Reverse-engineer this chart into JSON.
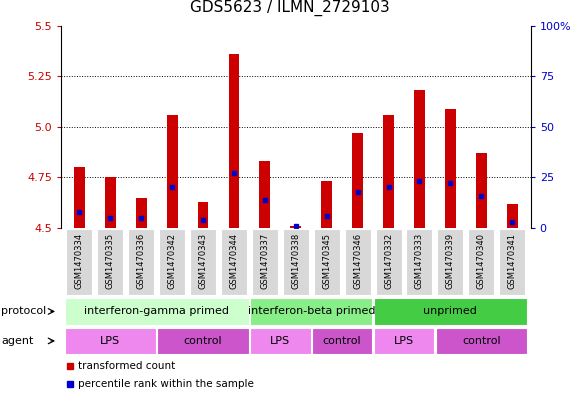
{
  "title": "GDS5623 / ILMN_2729103",
  "samples": [
    "GSM1470334",
    "GSM1470335",
    "GSM1470336",
    "GSM1470342",
    "GSM1470343",
    "GSM1470344",
    "GSM1470337",
    "GSM1470338",
    "GSM1470345",
    "GSM1470346",
    "GSM1470332",
    "GSM1470333",
    "GSM1470339",
    "GSM1470340",
    "GSM1470341"
  ],
  "transformed_counts": [
    4.8,
    4.75,
    4.65,
    5.06,
    4.63,
    5.36,
    4.83,
    4.51,
    4.73,
    4.97,
    5.06,
    5.18,
    5.09,
    4.87,
    4.62
  ],
  "percentile_ranks": [
    8,
    5,
    5,
    20,
    4,
    27,
    14,
    1,
    6,
    18,
    20,
    23,
    22,
    16,
    3
  ],
  "ylim_left": [
    4.5,
    5.5
  ],
  "ylim_right": [
    0,
    100
  ],
  "yticks_left": [
    4.5,
    4.75,
    5.0,
    5.25,
    5.5
  ],
  "yticks_right": [
    0,
    25,
    50,
    75,
    100
  ],
  "bar_color": "#cc0000",
  "bar_base": 4.5,
  "percentile_color": "#0000cc",
  "protocol_groups": [
    {
      "label": "interferon-gamma primed",
      "start": 0,
      "end": 6,
      "color": "#ccffcc"
    },
    {
      "label": "interferon-beta primed",
      "start": 6,
      "end": 10,
      "color": "#88ee88"
    },
    {
      "label": "unprimed",
      "start": 10,
      "end": 15,
      "color": "#44cc44"
    }
  ],
  "agent_groups": [
    {
      "label": "LPS",
      "start": 0,
      "end": 3,
      "color": "#ee88ee"
    },
    {
      "label": "control",
      "start": 3,
      "end": 6,
      "color": "#cc55cc"
    },
    {
      "label": "LPS",
      "start": 6,
      "end": 8,
      "color": "#ee88ee"
    },
    {
      "label": "control",
      "start": 8,
      "end": 10,
      "color": "#cc55cc"
    },
    {
      "label": "LPS",
      "start": 10,
      "end": 12,
      "color": "#ee88ee"
    },
    {
      "label": "control",
      "start": 12,
      "end": 15,
      "color": "#cc55cc"
    }
  ],
  "bar_width": 0.35,
  "background_color": "#ffffff",
  "plot_bg_color": "#ffffff",
  "sample_box_color": "#d8d8d8",
  "grid_color": "#000000",
  "left_axis_color": "#cc0000",
  "right_axis_color": "#0000cc",
  "title_fontsize": 11,
  "tick_fontsize": 8,
  "sample_fontsize": 6,
  "row_label_fontsize": 8,
  "row_text_fontsize": 8,
  "legend_fontsize": 7.5
}
